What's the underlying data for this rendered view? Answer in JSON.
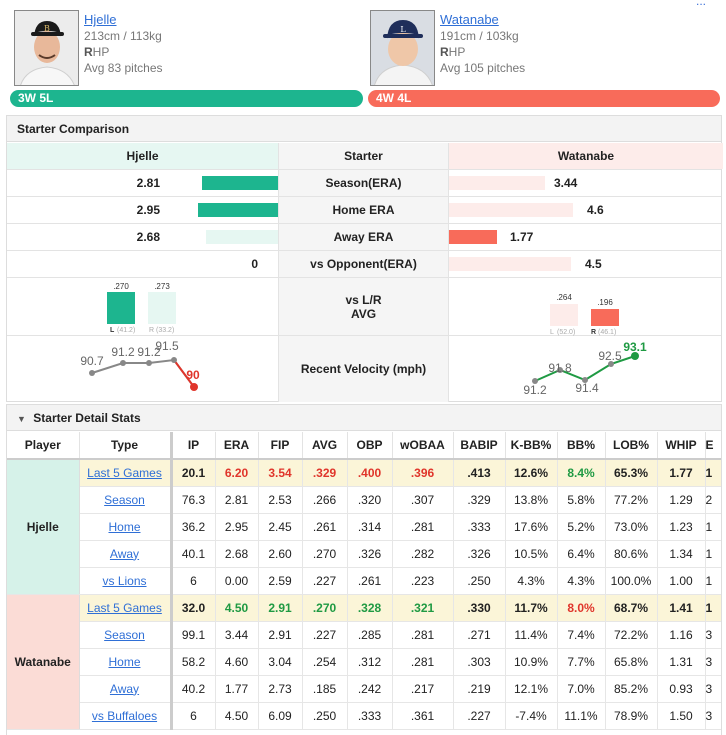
{
  "top_cut_text": "...",
  "left_player": {
    "name": "Hjelle",
    "size": "213cm / 113kg",
    "hand_letter": "R",
    "hand_rest": "HP",
    "avg_pitches": "Avg 83 pitches",
    "record": "3W 5L"
  },
  "right_player": {
    "name": "Watanabe",
    "size": "191cm / 103kg",
    "hand_letter": "R",
    "hand_rest": "HP",
    "avg_pitches": "Avg 105 pitches",
    "record": "4W 4L"
  },
  "comparison": {
    "title": "Starter Comparison",
    "left_header": "Hjelle",
    "center_header": "Starter",
    "right_header": "Watanabe",
    "rows": [
      {
        "label": "Season(ERA)",
        "left": "2.81",
        "right": "3.44"
      },
      {
        "label": "Home ERA",
        "left": "2.95",
        "right": "4.6"
      },
      {
        "label": "Away ERA",
        "left": "2.68",
        "right": "1.77"
      },
      {
        "label": "vs Opponent(ERA)",
        "left": "0",
        "right": "4.5"
      }
    ],
    "lr_label_1": "vs L/R",
    "lr_label_2": "AVG",
    "left_lr": {
      "l_val": ".270",
      "l_tag": "L",
      "l_sub": "(41.2)",
      "r_val": ".273",
      "r_tag": "R",
      "r_sub": "(33.2)"
    },
    "right_lr": {
      "l_val": ".264",
      "l_tag": "L",
      "l_sub": "(52.0)",
      "r_val": ".196",
      "r_tag": "R",
      "r_sub": "(46.1)"
    },
    "velocity_label": "Recent Velocity (mph)",
    "left_velocity": [
      "90.7",
      "91.2",
      "91.2",
      "91.5",
      "90"
    ],
    "right_velocity": [
      "91.2",
      "91.8",
      "91.4",
      "92.5",
      "93.1"
    ]
  },
  "details": {
    "title": "Starter Detail Stats",
    "columns": [
      "Player",
      "Type",
      "IP",
      "ERA",
      "FIP",
      "AVG",
      "OBP",
      "wOBAA",
      "BABIP",
      "K-BB%",
      "BB%",
      "LOB%",
      "WHIP",
      "E"
    ],
    "hjelle": {
      "player": "Hjelle",
      "rows": [
        {
          "type": "Last 5 Games",
          "vals": [
            "20.1",
            "6.20",
            "3.54",
            ".329",
            ".400",
            ".396",
            ".413",
            "12.6%",
            "8.4%",
            "65.3%",
            "1.77",
            "1"
          ]
        },
        {
          "type": "Season",
          "vals": [
            "76.3",
            "2.81",
            "2.53",
            ".266",
            ".320",
            ".307",
            ".329",
            "13.8%",
            "5.8%",
            "77.2%",
            "1.29",
            "2"
          ]
        },
        {
          "type": "Home",
          "vals": [
            "36.2",
            "2.95",
            "2.45",
            ".261",
            ".314",
            ".281",
            ".333",
            "17.6%",
            "5.2%",
            "73.0%",
            "1.23",
            "1"
          ]
        },
        {
          "type": "Away",
          "vals": [
            "40.1",
            "2.68",
            "2.60",
            ".270",
            ".326",
            ".282",
            ".326",
            "10.5%",
            "6.4%",
            "80.6%",
            "1.34",
            "1"
          ]
        },
        {
          "type": "vs Lions",
          "vals": [
            "6",
            "0.00",
            "2.59",
            ".227",
            ".261",
            ".223",
            ".250",
            "4.3%",
            "4.3%",
            "100.0%",
            "1.00",
            "1"
          ]
        }
      ]
    },
    "watanabe": {
      "player": "Watanabe",
      "rows": [
        {
          "type": "Last 5 Games",
          "vals": [
            "32.0",
            "4.50",
            "2.91",
            ".270",
            ".328",
            ".321",
            ".330",
            "11.7%",
            "8.0%",
            "68.7%",
            "1.41",
            "1"
          ]
        },
        {
          "type": "Season",
          "vals": [
            "99.1",
            "3.44",
            "2.91",
            ".227",
            ".285",
            ".281",
            ".271",
            "11.4%",
            "7.4%",
            "72.2%",
            "1.16",
            "3"
          ]
        },
        {
          "type": "Home",
          "vals": [
            "58.2",
            "4.60",
            "3.04",
            ".254",
            ".312",
            ".281",
            ".303",
            "10.9%",
            "7.7%",
            "65.8%",
            "1.31",
            "3"
          ]
        },
        {
          "type": "Away",
          "vals": [
            "40.2",
            "1.77",
            "2.73",
            ".185",
            ".242",
            ".217",
            ".219",
            "12.1%",
            "7.0%",
            "85.2%",
            "0.93",
            "3"
          ]
        },
        {
          "type": "vs Buffaloes",
          "vals": [
            "6",
            "4.50",
            "6.09",
            ".250",
            ".333",
            ".361",
            ".227",
            "-7.4%",
            "11.1%",
            "78.9%",
            "1.50",
            "3"
          ]
        }
      ]
    }
  },
  "colors": {
    "left": "#1db58f",
    "right": "#f86b5a",
    "left_light": "#e6f7f2",
    "right_light": "#fdecea"
  }
}
